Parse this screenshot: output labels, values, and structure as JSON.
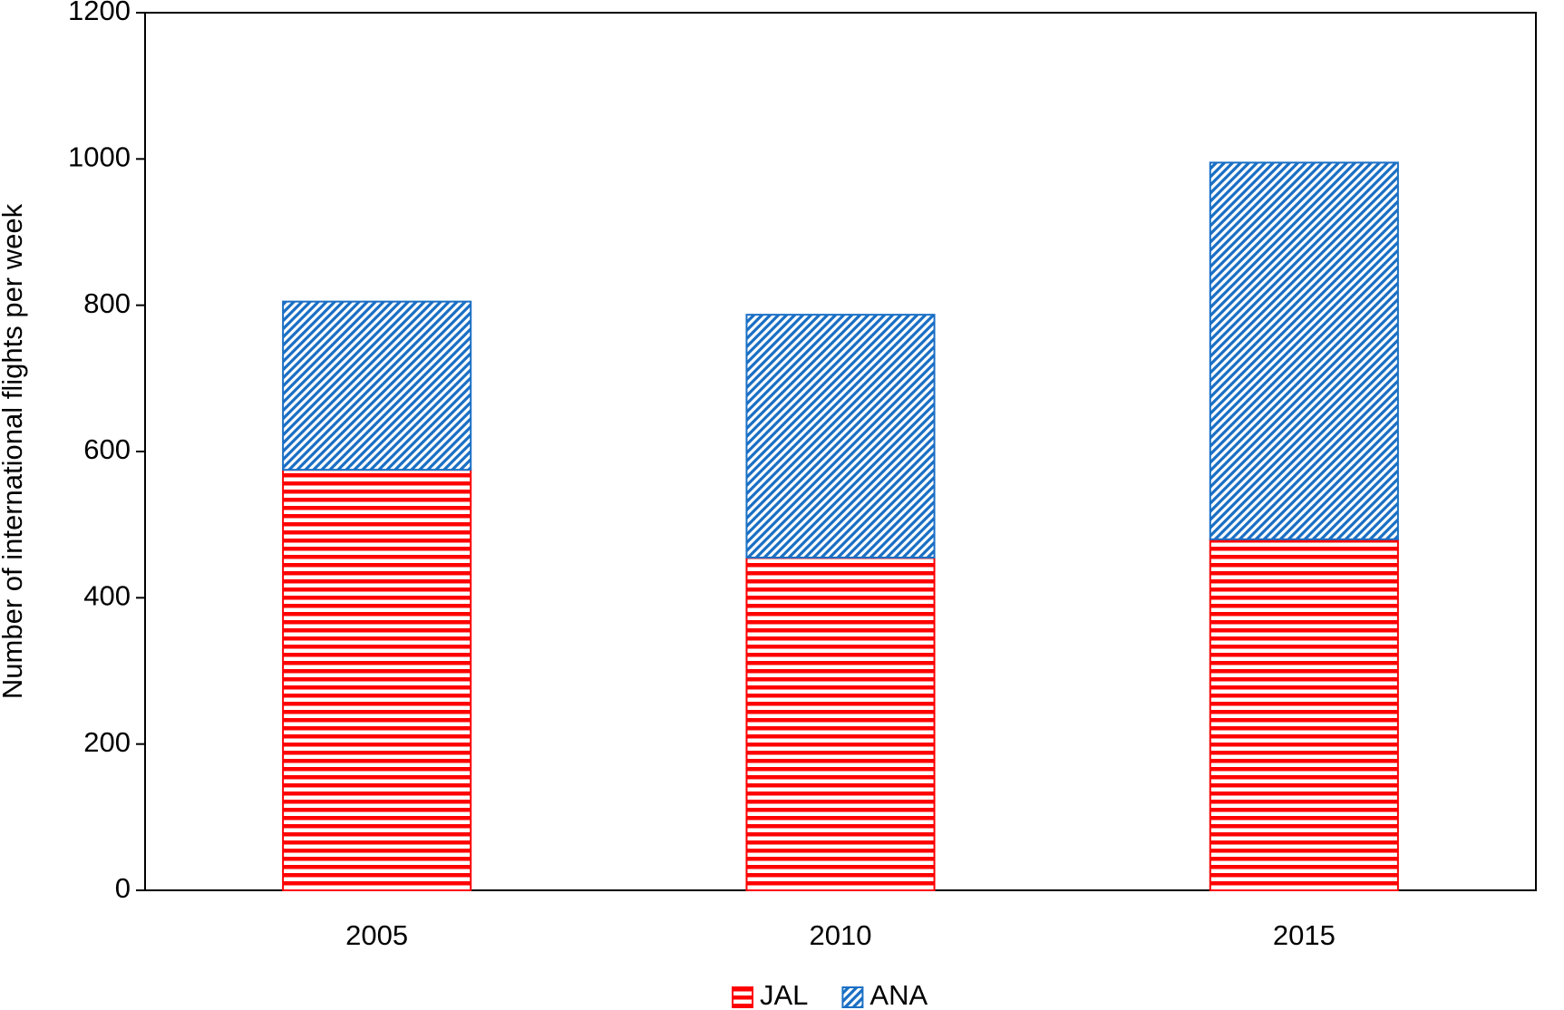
{
  "chart_data": {
    "type": "stacked_bar",
    "y_label": "Number of international flights per week",
    "categories": [
      "2005",
      "2010",
      "2015"
    ],
    "series": [
      {
        "name": "JAL",
        "color": "#ff0000",
        "pattern": "horizontal",
        "values": [
          575,
          455,
          480
        ]
      },
      {
        "name": "ANA",
        "color": "#1a6fc4",
        "pattern": "diagonal",
        "values": [
          230,
          332,
          515
        ]
      }
    ],
    "ylim": [
      0,
      1200
    ],
    "yticks": [
      0,
      200,
      400,
      600,
      800,
      1000,
      1200
    ],
    "grid": false,
    "legend": "bottom"
  }
}
